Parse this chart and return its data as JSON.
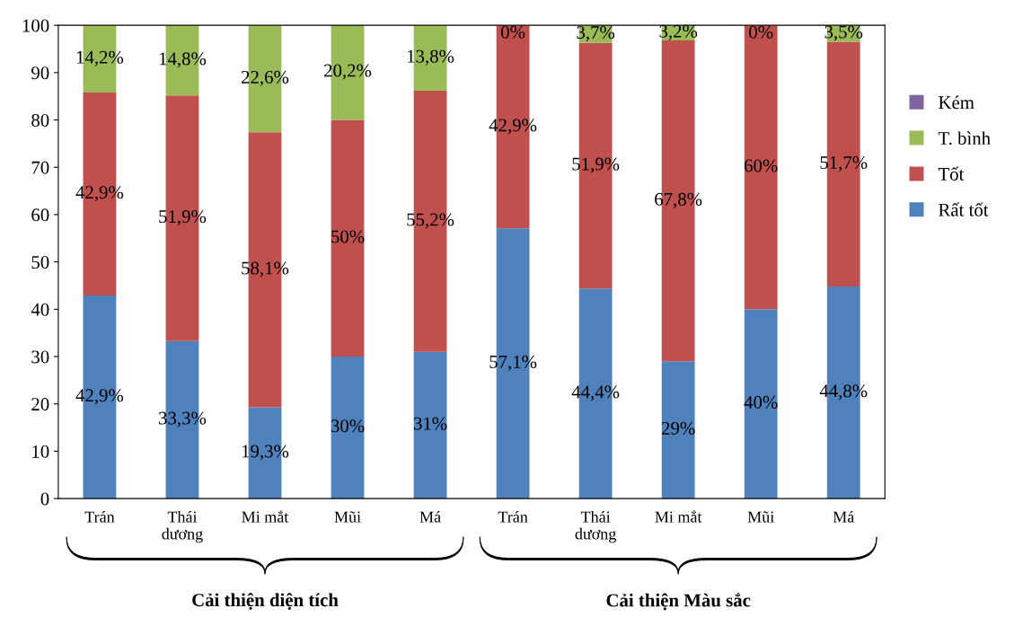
{
  "chart_data": {
    "type": "bar",
    "stacked": true,
    "categories": [
      "Trán",
      "Thái\ndương",
      "Mi mắt",
      "Mũi",
      "Má",
      "Trán",
      "Thái\ndương",
      "Mi mắt",
      "Mũi",
      "Má"
    ],
    "series": [
      {
        "name": "Rất tốt",
        "color": "#4f81bd",
        "values": [
          42.9,
          33.3,
          19.3,
          30,
          31,
          57.1,
          44.4,
          29,
          40,
          44.8
        ],
        "value_labels": [
          "42,9%",
          "33,3%",
          "19,3%",
          "30%",
          "31%",
          "57,1%",
          "44,4%",
          "29%",
          "40%",
          "44,8%"
        ]
      },
      {
        "name": "Tốt",
        "color": "#c0504d",
        "values": [
          42.9,
          51.9,
          58.1,
          50,
          55.2,
          42.9,
          51.9,
          67.8,
          60,
          51.7
        ],
        "value_labels": [
          "42,9%",
          "51,9%",
          "58,1%",
          "50%",
          "55,2%",
          "42,9%",
          "51,9%",
          "67,8%",
          "60%",
          "51,7%"
        ]
      },
      {
        "name": "T. bình",
        "color": "#9bbb59",
        "values": [
          14.2,
          14.8,
          22.6,
          20.2,
          13.8,
          0,
          3.7,
          3.2,
          0,
          3.5
        ],
        "value_labels": [
          "14,2%",
          "14,8%",
          "22,6%",
          "20,2%",
          "13,8%",
          "0%",
          "3,7%",
          "3,2%",
          "0%",
          "3,5%"
        ]
      },
      {
        "name": "Kém",
        "color": "#8064a2",
        "values": [
          0,
          0,
          0,
          0,
          0,
          0,
          0,
          0,
          0,
          0
        ]
      }
    ],
    "ylim": [
      0,
      100
    ],
    "yticks": [
      0,
      10,
      20,
      30,
      40,
      50,
      60,
      70,
      80,
      90,
      100
    ],
    "legend": "right",
    "annotations": [
      "Cải thiện diện tích",
      "Cải thiện Màu sắc"
    ]
  }
}
